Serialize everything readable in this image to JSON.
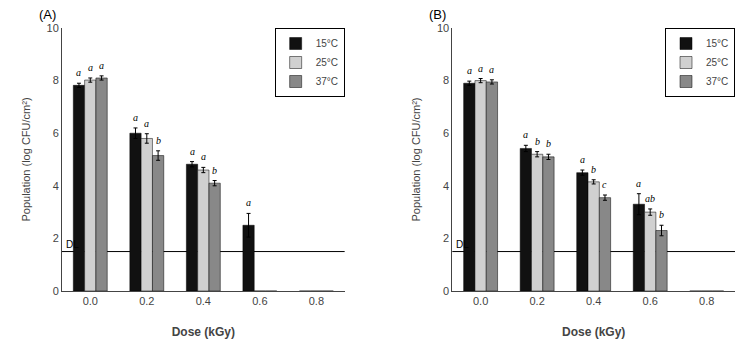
{
  "chart_data": [
    {
      "type": "bar",
      "title": "(A)",
      "xlabel": "Dose (kGy)",
      "ylabel": "Population (log CFU/cm²)",
      "categories": [
        "0.0",
        "0.2",
        "0.4",
        "0.6",
        "0.8"
      ],
      "series": [
        {
          "name": "15°C",
          "color": "#111111",
          "values": [
            7.82,
            6.0,
            4.82,
            2.5,
            0
          ],
          "errors": [
            0.08,
            0.2,
            0.1,
            0.45,
            0
          ],
          "letters": [
            "a",
            "a",
            "a",
            "a",
            null
          ]
        },
        {
          "name": "25°C",
          "color": "#d0d0d0",
          "values": [
            8.02,
            5.8,
            4.6,
            0,
            0
          ],
          "errors": [
            0.08,
            0.18,
            0.1,
            0,
            0
          ],
          "letters": [
            "a",
            "a",
            "a",
            null,
            null
          ]
        },
        {
          "name": "37°C",
          "color": "#888888",
          "values": [
            8.1,
            5.15,
            4.1,
            0,
            0
          ],
          "errors": [
            0.08,
            0.18,
            0.1,
            0,
            0
          ],
          "letters": [
            "a",
            "b",
            "b",
            null,
            null
          ]
        }
      ],
      "ylim": [
        0,
        10
      ],
      "yticks": [
        0,
        2,
        4,
        6,
        8,
        10
      ],
      "grid": false,
      "legend": "upper right",
      "hline": {
        "y": 1.5,
        "label": "DL"
      }
    },
    {
      "type": "bar",
      "title": "(B)",
      "xlabel": "Dose (kGy)",
      "ylabel": "Population (log CFU/cm²)",
      "categories": [
        "0.0",
        "0.2",
        "0.4",
        "0.6",
        "0.8"
      ],
      "series": [
        {
          "name": "15°C",
          "color": "#111111",
          "values": [
            7.9,
            5.42,
            4.5,
            3.3,
            0
          ],
          "errors": [
            0.08,
            0.12,
            0.1,
            0.4,
            0
          ],
          "letters": [
            "a",
            "a",
            "a",
            "a",
            null
          ]
        },
        {
          "name": "25°C",
          "color": "#d0d0d0",
          "values": [
            8.0,
            5.2,
            4.15,
            3.0,
            0
          ],
          "errors": [
            0.08,
            0.1,
            0.08,
            0.12,
            0
          ],
          "letters": [
            "a",
            "b",
            "b",
            "ab",
            null
          ]
        },
        {
          "name": "37°C",
          "color": "#888888",
          "values": [
            7.95,
            5.1,
            3.55,
            2.3,
            0
          ],
          "errors": [
            0.08,
            0.1,
            0.1,
            0.2,
            0
          ],
          "letters": [
            "a",
            "b",
            "c",
            "b",
            null
          ]
        }
      ],
      "ylim": [
        0,
        10
      ],
      "yticks": [
        0,
        2,
        4,
        6,
        8,
        10
      ],
      "grid": false,
      "legend": "upper right",
      "hline": {
        "y": 1.5,
        "label": "DL"
      }
    }
  ]
}
